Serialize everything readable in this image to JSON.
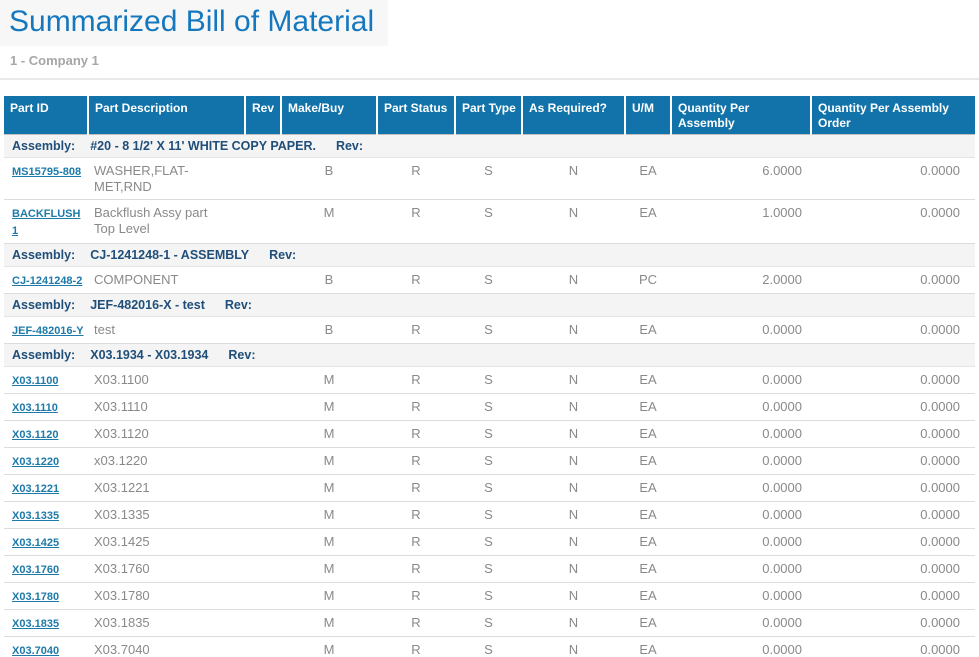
{
  "page": {
    "title": "Summarized Bill of Material",
    "subtitle": "1 - Company 1"
  },
  "colors": {
    "header_bg": "#1173aa",
    "title_text": "#1578be",
    "assembly_text": "#1f4e79",
    "link": "#1d7aa9",
    "data_text": "#898989",
    "group_row_bg": "#f4f4f4"
  },
  "table": {
    "assembly_label": "Assembly:",
    "rev_label": "Rev:",
    "columns": [
      {
        "key": "part_id",
        "label": "Part ID"
      },
      {
        "key": "description",
        "label": "Part Description"
      },
      {
        "key": "rev",
        "label": "Rev"
      },
      {
        "key": "make_buy",
        "label": "Make/Buy"
      },
      {
        "key": "part_status",
        "label": "Part Status"
      },
      {
        "key": "part_type",
        "label": "Part Type"
      },
      {
        "key": "as_required",
        "label": "As Required?"
      },
      {
        "key": "um",
        "label": "U/M"
      },
      {
        "key": "qty_per_assembly",
        "label": "Quantity Per Assembly"
      },
      {
        "key": "qty_per_assembly_order",
        "label": "Quantity Per Assembly Order"
      }
    ],
    "groups": [
      {
        "assembly": "#20 - 8 1/2' X 11' WHITE COPY PAPER.",
        "rows": [
          {
            "part_id": "MS15795-808",
            "description": "WASHER,FLAT-MET,RND",
            "rev": "",
            "make_buy": "B",
            "part_status": "R",
            "part_type": "S",
            "as_required": "N",
            "um": "EA",
            "qty_per_assembly": "6.0000",
            "qty_per_assembly_order": "0.0000"
          },
          {
            "part_id": "BACKFLUSH1",
            "description": "Backflush Assy part Top Level",
            "rev": "",
            "make_buy": "M",
            "part_status": "R",
            "part_type": "S",
            "as_required": "N",
            "um": "EA",
            "qty_per_assembly": "1.0000",
            "qty_per_assembly_order": "0.0000"
          }
        ]
      },
      {
        "assembly": "CJ-1241248-1 - ASSEMBLY",
        "rows": [
          {
            "part_id": "CJ-1241248-2",
            "description": "COMPONENT",
            "rev": "",
            "make_buy": "B",
            "part_status": "R",
            "part_type": "S",
            "as_required": "N",
            "um": "PC",
            "qty_per_assembly": "2.0000",
            "qty_per_assembly_order": "0.0000"
          }
        ]
      },
      {
        "assembly": "JEF-482016-X - test",
        "rows": [
          {
            "part_id": "JEF-482016-Y",
            "description": "test",
            "rev": "",
            "make_buy": "B",
            "part_status": "R",
            "part_type": "S",
            "as_required": "N",
            "um": "EA",
            "qty_per_assembly": "0.0000",
            "qty_per_assembly_order": "0.0000"
          }
        ]
      },
      {
        "assembly": "X03.1934 - X03.1934",
        "rows": [
          {
            "part_id": "X03.1100",
            "description": "X03.1100",
            "rev": "",
            "make_buy": "M",
            "part_status": "R",
            "part_type": "S",
            "as_required": "N",
            "um": "EA",
            "qty_per_assembly": "0.0000",
            "qty_per_assembly_order": "0.0000"
          },
          {
            "part_id": "X03.1110",
            "description": "X03.1110",
            "rev": "",
            "make_buy": "M",
            "part_status": "R",
            "part_type": "S",
            "as_required": "N",
            "um": "EA",
            "qty_per_assembly": "0.0000",
            "qty_per_assembly_order": "0.0000"
          },
          {
            "part_id": "X03.1120",
            "description": "X03.1120",
            "rev": "",
            "make_buy": "M",
            "part_status": "R",
            "part_type": "S",
            "as_required": "N",
            "um": "EA",
            "qty_per_assembly": "0.0000",
            "qty_per_assembly_order": "0.0000"
          },
          {
            "part_id": "X03.1220",
            "description": "x03.1220",
            "rev": "",
            "make_buy": "M",
            "part_status": "R",
            "part_type": "S",
            "as_required": "N",
            "um": "EA",
            "qty_per_assembly": "0.0000",
            "qty_per_assembly_order": "0.0000"
          },
          {
            "part_id": "X03.1221",
            "description": "X03.1221",
            "rev": "",
            "make_buy": "M",
            "part_status": "R",
            "part_type": "S",
            "as_required": "N",
            "um": "EA",
            "qty_per_assembly": "0.0000",
            "qty_per_assembly_order": "0.0000"
          },
          {
            "part_id": "X03.1335",
            "description": "X03.1335",
            "rev": "",
            "make_buy": "M",
            "part_status": "R",
            "part_type": "S",
            "as_required": "N",
            "um": "EA",
            "qty_per_assembly": "0.0000",
            "qty_per_assembly_order": "0.0000"
          },
          {
            "part_id": "X03.1425",
            "description": "X03.1425",
            "rev": "",
            "make_buy": "M",
            "part_status": "R",
            "part_type": "S",
            "as_required": "N",
            "um": "EA",
            "qty_per_assembly": "0.0000",
            "qty_per_assembly_order": "0.0000"
          },
          {
            "part_id": "X03.1760",
            "description": "X03.1760",
            "rev": "",
            "make_buy": "M",
            "part_status": "R",
            "part_type": "S",
            "as_required": "N",
            "um": "EA",
            "qty_per_assembly": "0.0000",
            "qty_per_assembly_order": "0.0000"
          },
          {
            "part_id": "X03.1780",
            "description": "X03.1780",
            "rev": "",
            "make_buy": "M",
            "part_status": "R",
            "part_type": "S",
            "as_required": "N",
            "um": "EA",
            "qty_per_assembly": "0.0000",
            "qty_per_assembly_order": "0.0000"
          },
          {
            "part_id": "X03.1835",
            "description": "X03.1835",
            "rev": "",
            "make_buy": "M",
            "part_status": "R",
            "part_type": "S",
            "as_required": "N",
            "um": "EA",
            "qty_per_assembly": "0.0000",
            "qty_per_assembly_order": "0.0000"
          },
          {
            "part_id": "X03.7040",
            "description": "X03.7040",
            "rev": "",
            "make_buy": "M",
            "part_status": "R",
            "part_type": "S",
            "as_required": "N",
            "um": "EA",
            "qty_per_assembly": "0.0000",
            "qty_per_assembly_order": "0.0000"
          }
        ]
      }
    ]
  }
}
